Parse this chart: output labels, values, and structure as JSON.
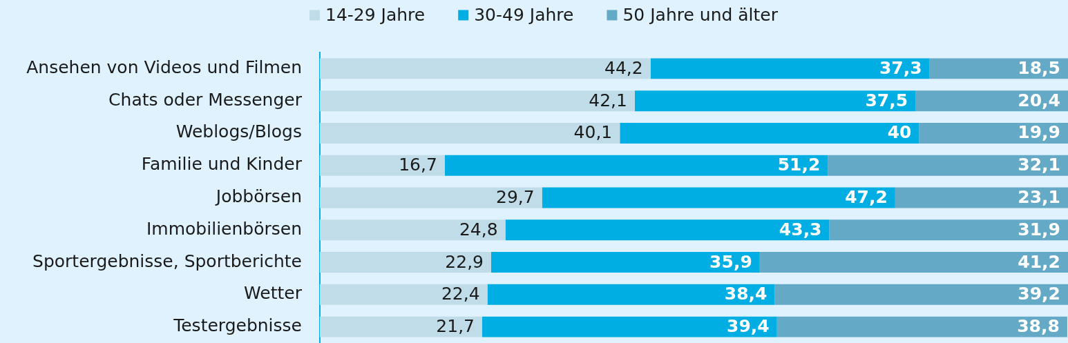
{
  "chart_data": {
    "type": "bar",
    "orientation": "horizontal",
    "stacked": true,
    "categories": [
      "Ansehen von Videos und Filmen",
      "Chats oder Messenger",
      "Weblogs/Blogs",
      "Familie und Kinder",
      "Jobbörsen",
      "Immobilienbörsen",
      "Sportergebnisse, Sportberichte",
      "Wetter",
      "Testergebnisse"
    ],
    "series": [
      {
        "name": "14-29 Jahre",
        "color": "#c0dce8",
        "values": [
          44.2,
          42.1,
          40.1,
          16.7,
          29.7,
          24.8,
          22.9,
          22.4,
          21.7
        ],
        "value_labels": [
          "44,2",
          "42,1",
          "40,1",
          "16,7",
          "29,7",
          "24,8",
          "22,9",
          "22,4",
          "21,7"
        ]
      },
      {
        "name": "30-49 Jahre",
        "color": "#00aee4",
        "values": [
          37.3,
          37.5,
          40,
          51.2,
          47.2,
          43.3,
          35.9,
          38.4,
          39.4
        ],
        "value_labels": [
          "37,3",
          "37,5",
          "40",
          "51,2",
          "47,2",
          "43,3",
          "35,9",
          "38,4",
          "39,4"
        ]
      },
      {
        "name": "50 Jahre und älter",
        "color": "#64aac6",
        "values": [
          18.5,
          20.4,
          19.9,
          32.1,
          23.1,
          31.9,
          41.2,
          39.2,
          38.8
        ],
        "value_labels": [
          "18,5",
          "20,4",
          "19,9",
          "32,1",
          "23,1",
          "31,9",
          "41,2",
          "39,2",
          "38,8"
        ]
      }
    ],
    "xlim": [
      0,
      100
    ],
    "legend": "top",
    "grid": false,
    "tick_labels": "y"
  }
}
